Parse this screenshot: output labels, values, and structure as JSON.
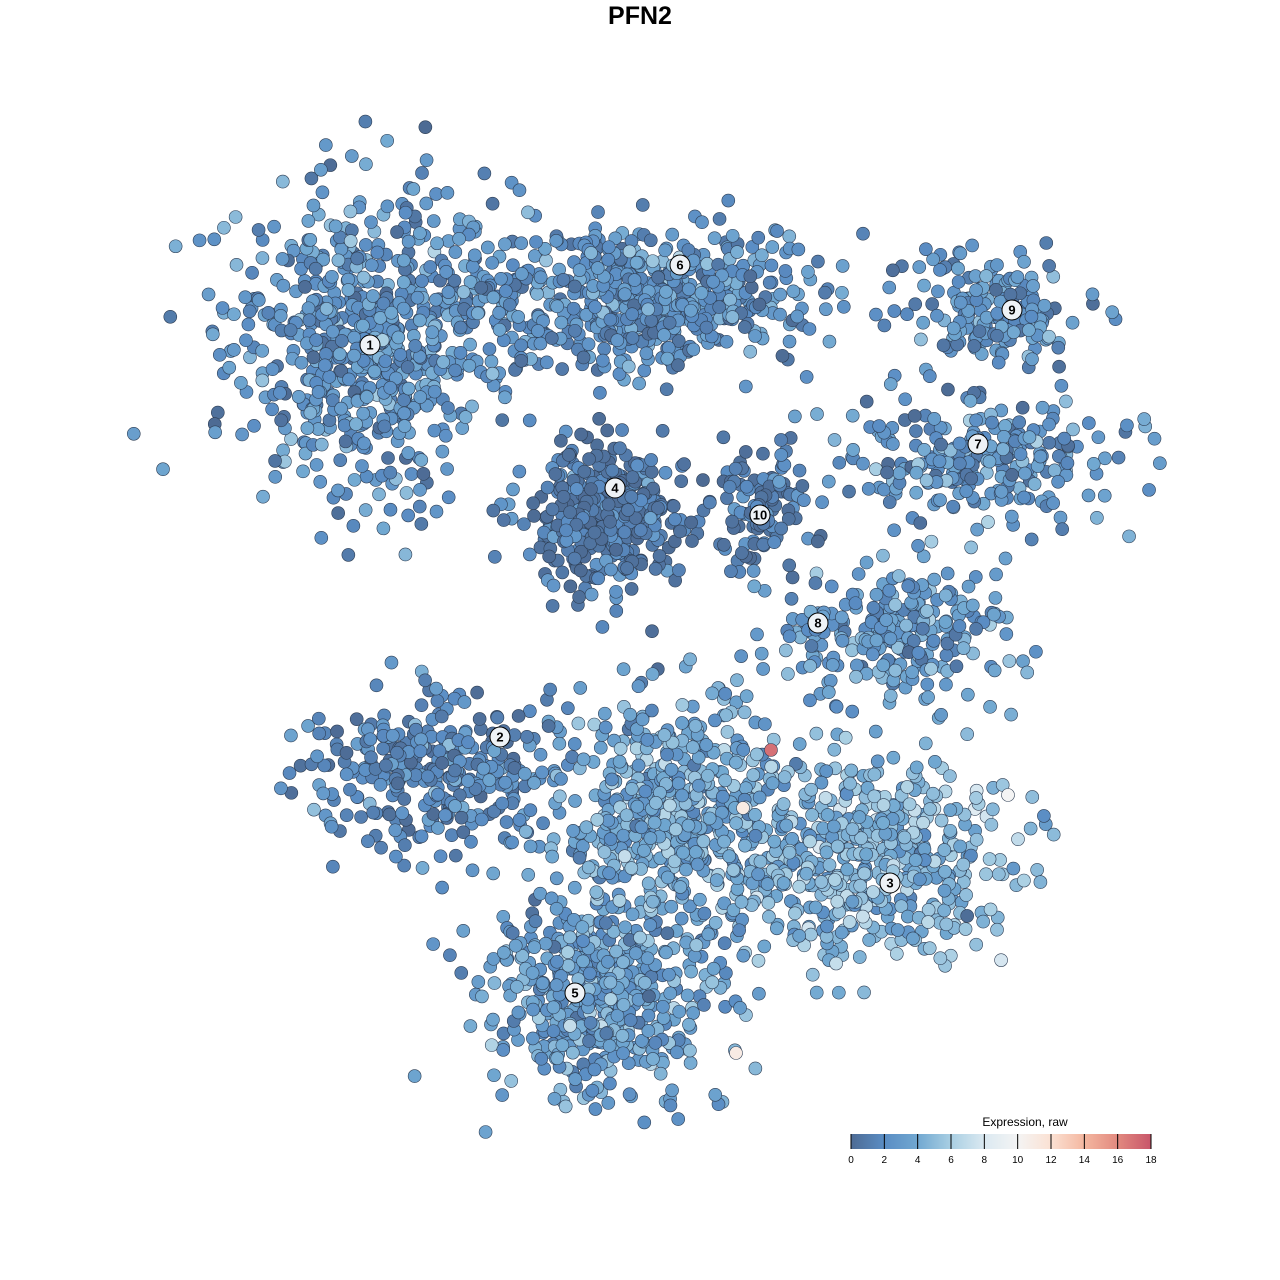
{
  "chart_data": {
    "type": "scatter",
    "title": "PFN2",
    "xlabel": "",
    "ylabel": "",
    "xlim": [
      -50,
      50
    ],
    "ylim": [
      -50,
      50
    ],
    "grid": false,
    "legend": {
      "title": "Expression, raw",
      "placement": "bottom-right",
      "ticks": [
        0,
        2,
        4,
        6,
        8,
        10,
        12,
        14,
        16,
        18
      ],
      "range": [
        0,
        18
      ],
      "colors": [
        "#4d6b94",
        "#5a8dc4",
        "#71a8d1",
        "#a9cfe3",
        "#dbe9f1",
        "#f4f4f4",
        "#fbe1d3",
        "#f4b7a0",
        "#e2897f",
        "#c8566a"
      ]
    },
    "clusters": [
      {
        "label": "1",
        "center": [
          -27,
          29.5
        ],
        "spread": [
          7,
          8
        ],
        "n": 650,
        "mean_expression": 2.6
      },
      {
        "label": "6",
        "center": [
          0,
          34
        ],
        "spread": [
          9,
          3.5
        ],
        "n": 600,
        "mean_expression": 2.4
      },
      {
        "label": "4",
        "center": [
          -3,
          12
        ],
        "spread": [
          3.8,
          3.6
        ],
        "n": 420,
        "mean_expression": 0.7
      },
      {
        "label": "10",
        "center": [
          12,
          14
        ],
        "spread": [
          2.5,
          3
        ],
        "n": 110,
        "mean_expression": 1.0
      },
      {
        "label": "9",
        "center": [
          35,
          33
        ],
        "spread": [
          4.5,
          2.5
        ],
        "n": 180,
        "mean_expression": 2.6
      },
      {
        "label": "7",
        "center": [
          34,
          18
        ],
        "spread": [
          7,
          3
        ],
        "n": 260,
        "mean_expression": 2.6
      },
      {
        "label": "8",
        "center": [
          25,
          1
        ],
        "spread": [
          6,
          3
        ],
        "n": 260,
        "mean_expression": 3.0
      },
      {
        "label": "2",
        "center": [
          -21,
          -13
        ],
        "spread": [
          6,
          4
        ],
        "n": 320,
        "mean_expression": 1.8
      },
      {
        "label": "3",
        "center": [
          23,
          -22
        ],
        "spread": [
          7,
          5
        ],
        "n": 520,
        "mean_expression": 4.6
      },
      {
        "label": "5",
        "center": [
          -4,
          -35
        ],
        "spread": [
          6,
          5
        ],
        "n": 520,
        "mean_expression": 3.4
      },
      {
        "label": "",
        "center": [
          4,
          -17
        ],
        "spread": [
          5.5,
          5.5
        ],
        "n": 520,
        "mean_expression": 4.0
      }
    ],
    "label_positions": [
      {
        "label": "1",
        "x": -27,
        "y": 29.5
      },
      {
        "label": "6",
        "x": 4,
        "y": 37.5
      },
      {
        "label": "4",
        "x": -2.5,
        "y": 15.2
      },
      {
        "label": "10",
        "x": 12,
        "y": 12.5
      },
      {
        "label": "9",
        "x": 37.2,
        "y": 33
      },
      {
        "label": "7",
        "x": 33.8,
        "y": 19.6
      },
      {
        "label": "8",
        "x": 17.8,
        "y": 1.7
      },
      {
        "label": "2",
        "x": -14,
        "y": -9.7
      },
      {
        "label": "3",
        "x": 25,
        "y": -24.3
      },
      {
        "label": "5",
        "x": -6.5,
        "y": -35.3
      }
    ],
    "highlighted_points": [
      {
        "x": 13.1,
        "y": -11,
        "expression": 17
      },
      {
        "x": 10.3,
        "y": -16.8,
        "expression": 11
      },
      {
        "x": 9.6,
        "y": -41.3,
        "expression": 11
      },
      {
        "x": 36.8,
        "y": -15.5,
        "expression": 10
      }
    ]
  }
}
